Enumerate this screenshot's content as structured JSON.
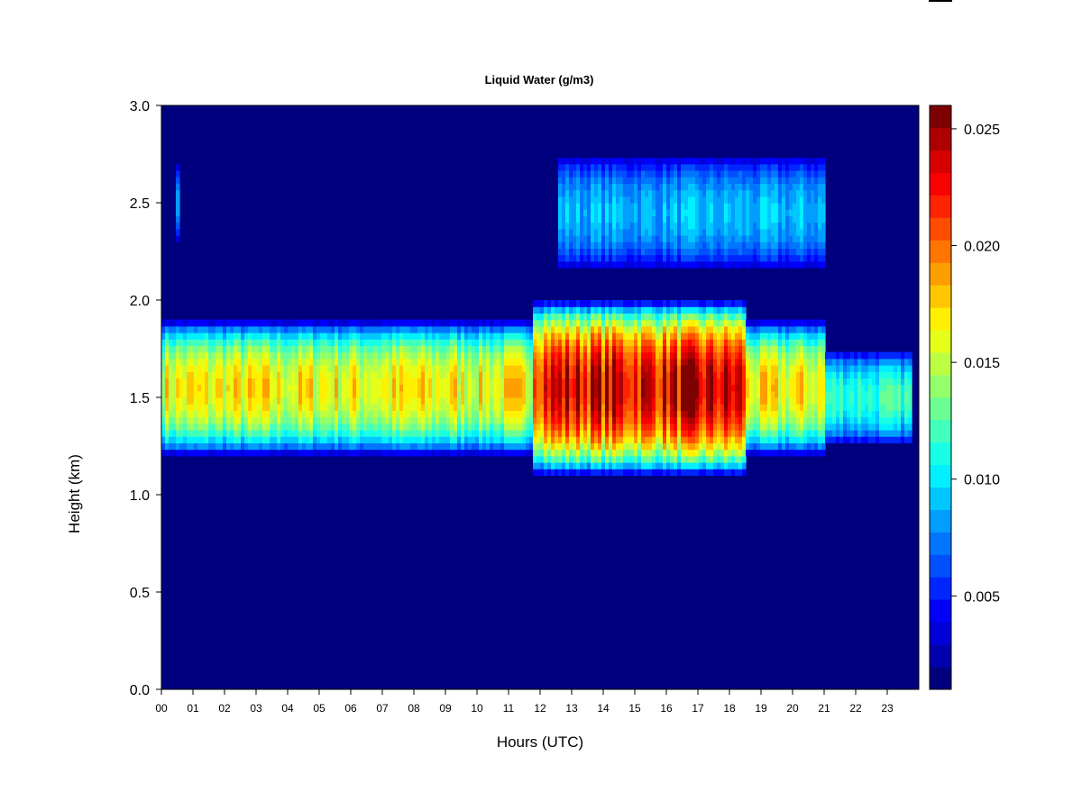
{
  "chart_data": {
    "type": "heatmap",
    "title": "Liquid Water (g/m3)",
    "xlabel": "Hours (UTC)",
    "ylabel": "Height (km)",
    "xlim": [
      0,
      24
    ],
    "ylim": [
      0.0,
      3.0
    ],
    "x_ticks": [
      "00",
      "01",
      "02",
      "03",
      "04",
      "05",
      "06",
      "07",
      "08",
      "09",
      "10",
      "11",
      "12",
      "13",
      "14",
      "15",
      "16",
      "17",
      "18",
      "19",
      "20",
      "21",
      "22",
      "23"
    ],
    "y_ticks": [
      "0.0",
      "0.5",
      "1.0",
      "1.5",
      "2.0",
      "2.5",
      "3.0"
    ],
    "colorbar": {
      "range": [
        0.001,
        0.026
      ],
      "ticks": [
        "0.005",
        "0.010",
        "0.015",
        "0.020",
        "0.025"
      ],
      "tick_values": [
        0.005,
        0.01,
        0.015,
        0.02,
        0.025
      ],
      "levels": 26,
      "colormap": [
        "#00007F",
        "#0000C8",
        "#0000FF",
        "#0044FF",
        "#0080FF",
        "#00BFFF",
        "#00FFFF",
        "#3FFFBF",
        "#7FFF7F",
        "#BFFF3F",
        "#FFFF00",
        "#FFBF00",
        "#FF7F00",
        "#FF4000",
        "#FF0000",
        "#C80000",
        "#7F0000"
      ]
    },
    "layers": [
      {
        "name_hint": "low cloud layer",
        "x_range": [
          0.0,
          21.0
        ],
        "z_range": [
          1.15,
          1.85
        ],
        "peak_height": 1.55,
        "peak_value": 0.017
      },
      {
        "name_hint": "low cloud layer (intensified)",
        "x_range": [
          11.8,
          18.5
        ],
        "z_range": [
          1.05,
          1.95
        ],
        "peak_height": 1.55,
        "peak_value": 0.024
      },
      {
        "name_hint": "low cloud layer (broken)",
        "x_range": [
          21.0,
          23.8
        ],
        "z_range": [
          1.25,
          1.75
        ],
        "peak_height": 1.5,
        "peak_value": 0.012
      },
      {
        "name_hint": "upper cloud layer",
        "x_range": [
          12.6,
          21.0
        ],
        "z_range": [
          2.1,
          2.72
        ],
        "peak_height": 2.45,
        "peak_value": 0.009
      },
      {
        "name_hint": "small upper patch",
        "x_range": [
          0.45,
          0.6
        ],
        "z_range": [
          2.3,
          2.72
        ],
        "peak_height": 2.5,
        "peak_value": 0.008
      }
    ]
  }
}
